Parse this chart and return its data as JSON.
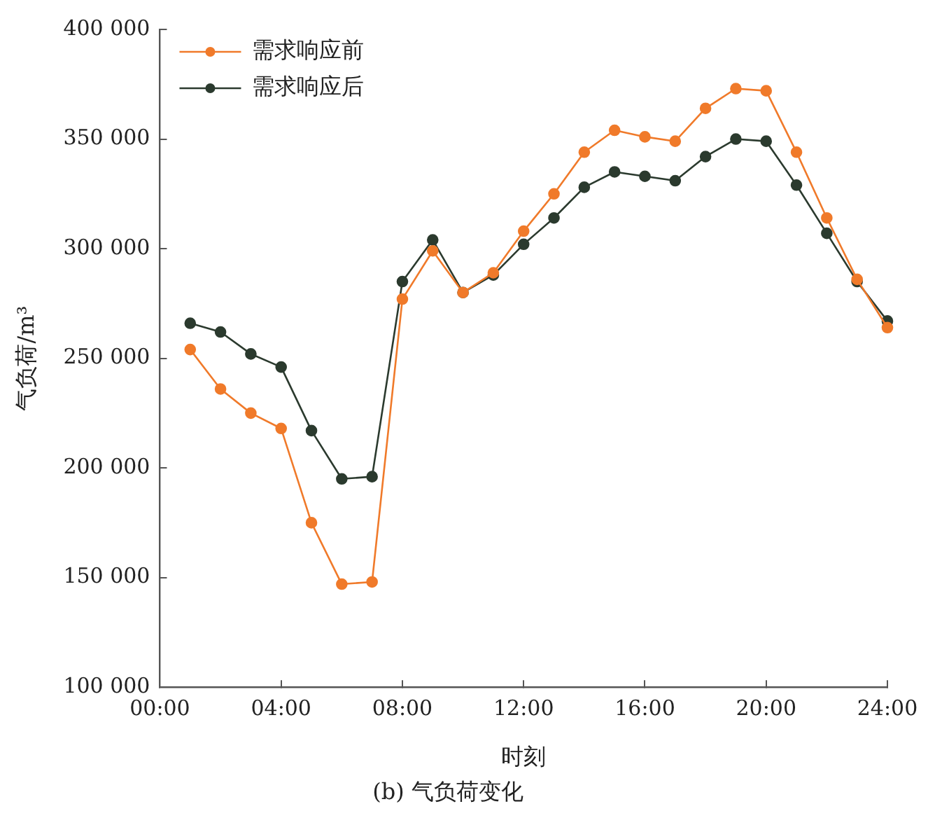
{
  "chart_data": {
    "type": "line",
    "title": "(b) 气负荷变化",
    "xlabel": "时刻",
    "ylabel": "气负荷/m³",
    "x": [
      1,
      2,
      3,
      4,
      5,
      6,
      7,
      8,
      9,
      10,
      11,
      12,
      13,
      14,
      15,
      16,
      17,
      18,
      19,
      20,
      21,
      22,
      23,
      24
    ],
    "series": [
      {
        "name": "需求响应前",
        "color": "#f07a2a",
        "values": [
          254000,
          236000,
          225000,
          218000,
          175000,
          147000,
          148000,
          277000,
          299000,
          280000,
          289000,
          308000,
          325000,
          344000,
          354000,
          351000,
          349000,
          364000,
          373000,
          372000,
          344000,
          314000,
          286000,
          264000
        ]
      },
      {
        "name": "需求响应后",
        "color": "#2b3a2e",
        "values": [
          266000,
          262000,
          252000,
          246000,
          217000,
          195000,
          196000,
          285000,
          304000,
          280000,
          288000,
          302000,
          314000,
          328000,
          335000,
          333000,
          331000,
          342000,
          350000,
          349000,
          329000,
          307000,
          285000,
          267000
        ]
      }
    ],
    "xlim": [
      0,
      24
    ],
    "xticks": [
      {
        "value": 0,
        "label": "00:00"
      },
      {
        "value": 4,
        "label": "04:00"
      },
      {
        "value": 8,
        "label": "08:00"
      },
      {
        "value": 12,
        "label": "12:00"
      },
      {
        "value": 16,
        "label": "16:00"
      },
      {
        "value": 20,
        "label": "20:00"
      },
      {
        "value": 24,
        "label": "24:00"
      }
    ],
    "ylim": [
      100000,
      400000
    ],
    "yticks": [
      {
        "value": 100000,
        "label": "100 000"
      },
      {
        "value": 150000,
        "label": "150 000"
      },
      {
        "value": 200000,
        "label": "200 000"
      },
      {
        "value": 250000,
        "label": "250 000"
      },
      {
        "value": 300000,
        "label": "300 000"
      },
      {
        "value": 350000,
        "label": "350 000"
      },
      {
        "value": 400000,
        "label": "400 000"
      }
    ],
    "grid": false,
    "legend": "top left",
    "marker": "circle",
    "line_style": "solid"
  }
}
